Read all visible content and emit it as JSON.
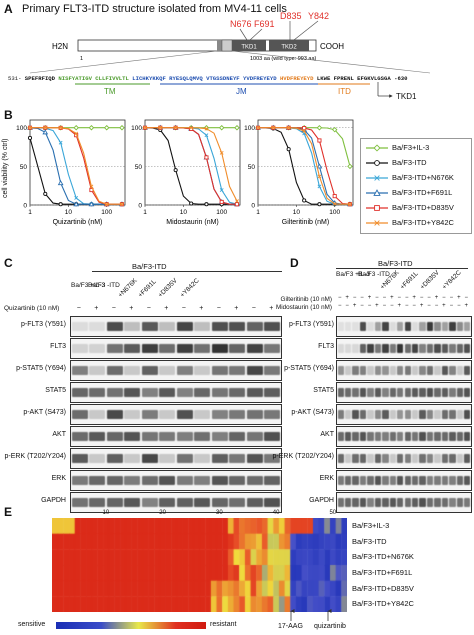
{
  "panelA": {
    "letter": "A",
    "title": "Primary FLT3-ITD structure isolated from MV4-11 cells",
    "mutations": [
      "N676",
      "F691",
      "D835",
      "Y842"
    ],
    "n_term": "H2N",
    "c_term": "COOH",
    "start_num": "1",
    "length_note": "1003 aa (wild type: 993 aa)",
    "tkd1": "TKD1",
    "tkd2": "TKD2",
    "seq_start": "531-",
    "seq_black1": "SPEFRFIQD",
    "seq_green": "NISFYATIGV CLLFIVVLTL",
    "seq_blue": "LICHKYKKQF RYESQLQMVQ VTGSSDNEYF YVDFREYEYD",
    "seq_orange": "HVDFREYEYD",
    "seq_black2": "LKWE",
    "seq_end": "FPRENL EFGKVLGSGA -630",
    "tm": "TM",
    "jm": "JM",
    "itd": "ITD",
    "tkd1_arrow": "TKD1"
  },
  "panelB": {
    "letter": "B",
    "ylabel": "cell viability (% ctrl)",
    "yticks": [
      "0",
      "50",
      "100"
    ],
    "xticks": [
      "1",
      "10",
      "100"
    ],
    "xlabels": [
      "Quizartinib (nM)",
      "Midostaurin (nM)",
      "Gilteritinib (nM)"
    ],
    "legend": [
      {
        "name": "Ba/F3+IL-3",
        "color": "#7fbf3f",
        "marker": "diamond"
      },
      {
        "name": "Ba/F3-ITD",
        "color": "#111111",
        "marker": "circle"
      },
      {
        "name": "Ba/F3-ITD+N676K",
        "color": "#3aa6d8",
        "marker": "x"
      },
      {
        "name": "Ba/F3-ITD+F691L",
        "color": "#2a6fb0",
        "marker": "triangle"
      },
      {
        "name": "Ba/F3-ITD+D835V",
        "color": "#e0302a",
        "marker": "square"
      },
      {
        "name": "Ba/F3-ITD+Y842C",
        "color": "#f08c2a",
        "marker": "x"
      }
    ]
  },
  "panelC": {
    "letter": "C",
    "header_itd": "Ba/F3-ITD",
    "col_groups": [
      "Ba/F3 +IL-3",
      "Ba/F3 -ITD",
      "+N676K",
      "+F691L",
      "+D835V",
      "+Y842C"
    ],
    "treat_label": "Quizartinib (10 nM)",
    "signs": [
      "−",
      "+",
      "−",
      "+",
      "−",
      "+",
      "−",
      "+",
      "−",
      "+",
      "−",
      "+"
    ],
    "rows": [
      "p-FLT3 (Y591)",
      "FLT3",
      "p-STAT5 (Y694)",
      "STAT5",
      "p-AKT (S473)",
      "AKT",
      "p-ERK (T202/Y204)",
      "ERK",
      "GAPDH"
    ]
  },
  "panelD": {
    "letter": "D",
    "header_itd": "Ba/F3-ITD",
    "col_groups": [
      "Ba/F3 +IL-3",
      "Ba/F3 -ITD",
      "+N676K",
      "+F691L",
      "+D835V",
      "+Y842C"
    ],
    "treat1": "Gilteritinib (10 nM)",
    "treat2": "Midostaurin (10 nM)",
    "signs1": [
      "−",
      "+",
      "−",
      "−",
      "+",
      "−",
      "−",
      "+",
      "−",
      "−",
      "+",
      "−",
      "−",
      "+",
      "−",
      "−",
      "+",
      "−"
    ],
    "signs2": [
      "−",
      "−",
      "+",
      "−",
      "−",
      "+",
      "−",
      "−",
      "+",
      "−",
      "−",
      "+",
      "−",
      "−",
      "+",
      "−",
      "−",
      "+"
    ],
    "rows": [
      "p-FLT3 (Y591)",
      "FLT3",
      "p-STAT5 (Y694)",
      "STAT5",
      "p-AKT (S473)",
      "AKT",
      "p-ERK (T202/Y204)",
      "ERK",
      "GAPDH"
    ]
  },
  "panelE": {
    "letter": "E",
    "col_ticks": [
      "10",
      "20",
      "30",
      "40",
      "50"
    ],
    "rows": [
      "Ba/F3+IL-3",
      "Ba/F3-ITD",
      "Ba/F3-ITD+N676K",
      "Ba/F3-ITD+F691L",
      "Ba/F3-ITD+D835V",
      "Ba/F3-ITD+Y842C"
    ],
    "scale_low": "sensitive",
    "scale_high": "resistant",
    "markers": [
      "17-AAG",
      "quizartinib"
    ]
  }
}
